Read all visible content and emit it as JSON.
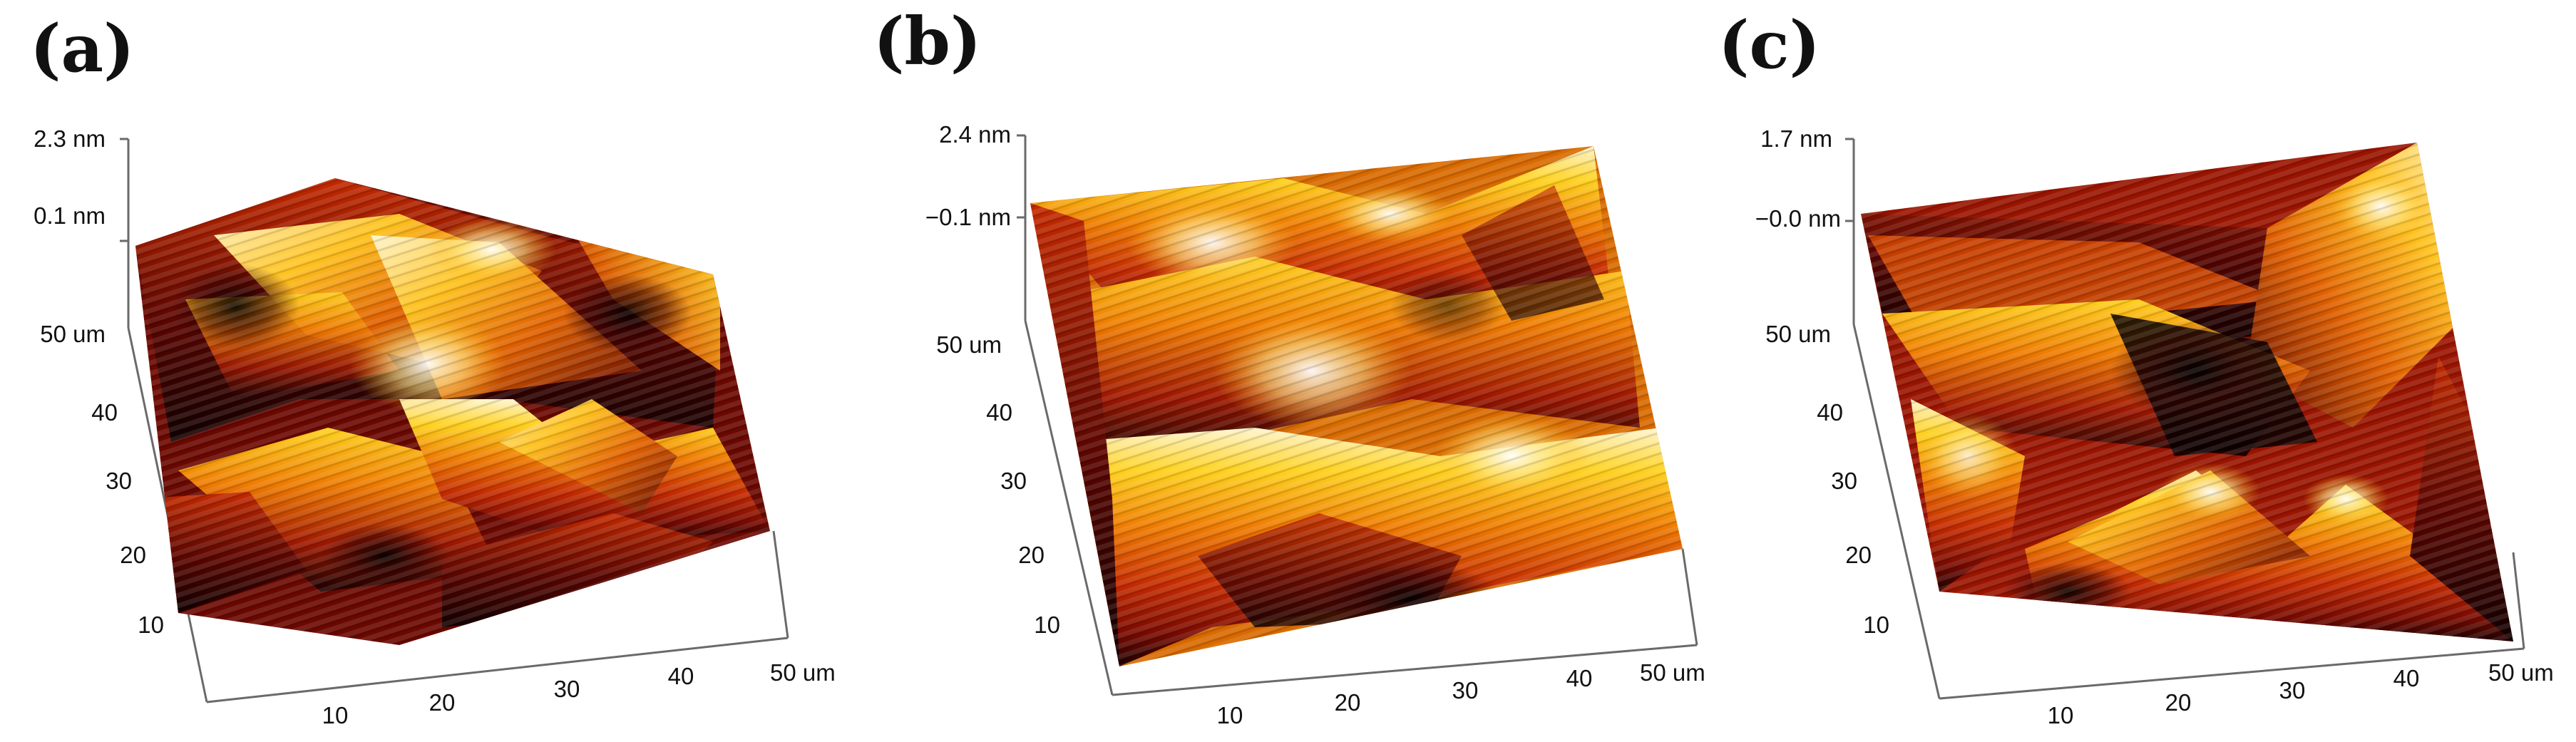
{
  "figure": {
    "panels": [
      {
        "id": "a",
        "label": "(a)",
        "z_max_label": "2.3 nm",
        "z_ref_label": "0.1 nm",
        "y_end_label": "50 um",
        "y_ticks": [
          "40",
          "30",
          "20",
          "10"
        ],
        "x_ticks": [
          "10",
          "20",
          "30",
          "40"
        ],
        "x_end_label": "50 um",
        "colormap": "afmhot"
      },
      {
        "id": "b",
        "label": "(b)",
        "z_max_label": "2.4 nm",
        "z_ref_label": "−0.1 nm",
        "y_end_label": "50 um",
        "y_ticks": [
          "40",
          "30",
          "20",
          "10"
        ],
        "x_ticks": [
          "10",
          "20",
          "30",
          "40"
        ],
        "x_end_label": "50 um",
        "colormap": "afmhot"
      },
      {
        "id": "c",
        "label": "(c)",
        "z_max_label": "1.7 nm",
        "z_ref_label": "−0.0 nm",
        "y_end_label": "50 um",
        "y_ticks": [
          "40",
          "30",
          "20",
          "10"
        ],
        "x_ticks": [
          "10",
          "20",
          "30",
          "40"
        ],
        "x_end_label": "50 um",
        "colormap": "afmhot"
      }
    ],
    "colors": {
      "dark": "#1a0000",
      "deep_red": "#7a0a00",
      "red": "#c42a00",
      "orange": "#ee7a00",
      "yellow": "#ffd21e",
      "highlight": "#fff6d0"
    }
  }
}
